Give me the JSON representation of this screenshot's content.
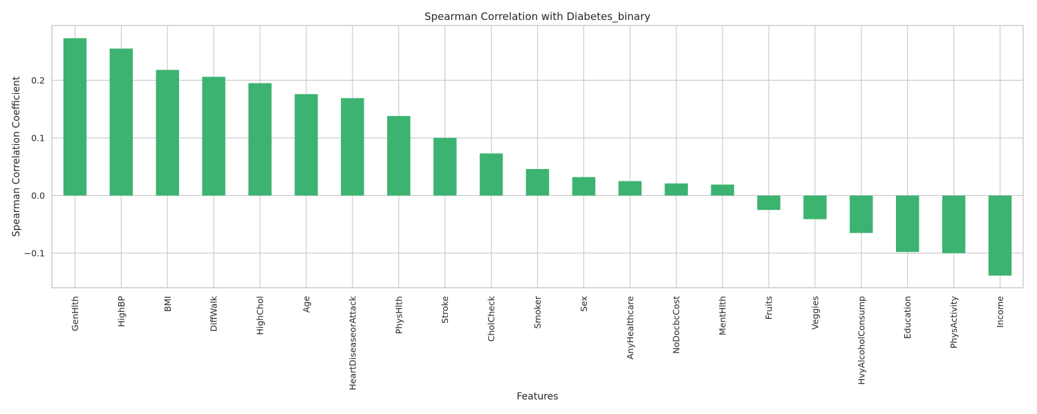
{
  "chart_data": {
    "type": "bar",
    "title": "Spearman Correlation with Diabetes_binary",
    "xlabel": "Features",
    "ylabel": "Spearman Correlation Coefficient",
    "ylim": [
      -0.16,
      0.295
    ],
    "yticks": [
      -0.1,
      0.0,
      0.1,
      0.2
    ],
    "ytick_labels": [
      "−0.1",
      "0.0",
      "0.1",
      "0.2"
    ],
    "grid": true,
    "bar_color": "#3cb371",
    "categories": [
      "GenHlth",
      "HighBP",
      "BMI",
      "DiffWalk",
      "HighChol",
      "Age",
      "HeartDiseaseorAttack",
      "PhysHlth",
      "Stroke",
      "CholCheck",
      "Smoker",
      "Sex",
      "AnyHealthcare",
      "NoDocbcCost",
      "MentHlth",
      "Fruits",
      "Veggies",
      "HvyAlcoholConsump",
      "Education",
      "PhysActivity",
      "Income"
    ],
    "values": [
      0.273,
      0.255,
      0.218,
      0.206,
      0.195,
      0.176,
      0.169,
      0.138,
      0.1,
      0.073,
      0.046,
      0.032,
      0.025,
      0.021,
      0.019,
      -0.025,
      -0.041,
      -0.065,
      -0.098,
      -0.1,
      -0.139
    ]
  }
}
